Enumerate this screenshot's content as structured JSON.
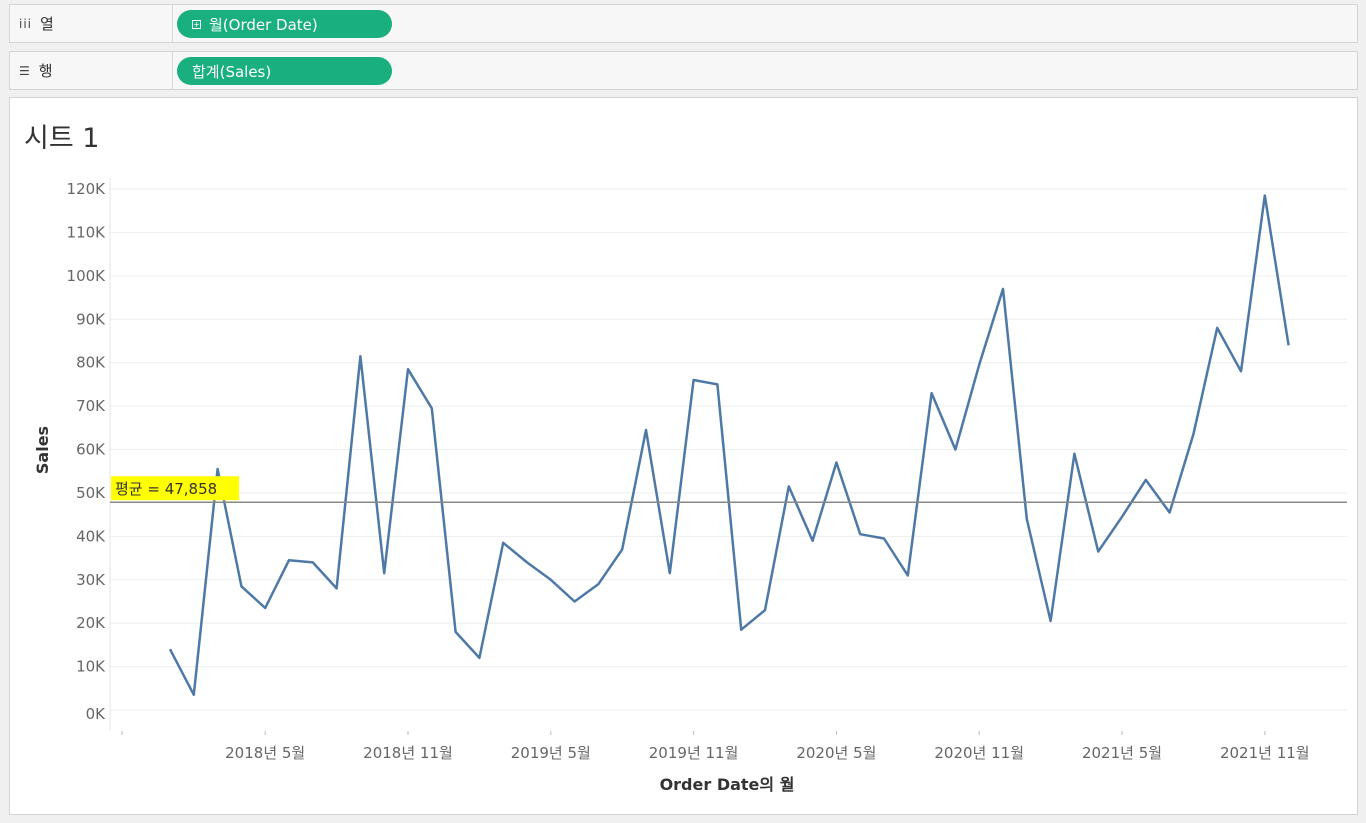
{
  "shelves": {
    "columns": {
      "icon": "columns-icon",
      "label": "열",
      "pill": "월(Order Date)"
    },
    "rows": {
      "icon": "rows-icon",
      "label": "행",
      "pill": "합계(Sales)"
    }
  },
  "sheet": {
    "title": "시트 1"
  },
  "colors": {
    "line": "#4e79a7",
    "pill": "#1aaf7e",
    "ref_line": "#888888",
    "ref_highlight": "#ffff00"
  },
  "chart_data": {
    "type": "line",
    "xlabel": "Order Date의 월",
    "ylabel": "Sales",
    "ylim": [
      0,
      120000
    ],
    "grid": true,
    "x_ticks": [
      "2018년 5월",
      "2018년 11월",
      "2019년 5월",
      "2019년 11월",
      "2020년 5월",
      "2020년 11월",
      "2021년 5월",
      "2021년 11월"
    ],
    "y_ticks": [
      "0K",
      "10K",
      "20K",
      "30K",
      "40K",
      "50K",
      "60K",
      "70K",
      "80K",
      "90K",
      "100K",
      "110K",
      "120K"
    ],
    "x": [
      "2018-01",
      "2018-02",
      "2018-03",
      "2018-04",
      "2018-05",
      "2018-06",
      "2018-07",
      "2018-08",
      "2018-09",
      "2018-10",
      "2018-11",
      "2018-12",
      "2019-01",
      "2019-02",
      "2019-03",
      "2019-04",
      "2019-05",
      "2019-06",
      "2019-07",
      "2019-08",
      "2019-09",
      "2019-10",
      "2019-11",
      "2019-12",
      "2020-01",
      "2020-02",
      "2020-03",
      "2020-04",
      "2020-05",
      "2020-06",
      "2020-07",
      "2020-08",
      "2020-09",
      "2020-10",
      "2020-11",
      "2020-12",
      "2021-01",
      "2021-02",
      "2021-03",
      "2021-04",
      "2021-05",
      "2021-06",
      "2021-07",
      "2021-08",
      "2021-09",
      "2021-10",
      "2021-11",
      "2021-12"
    ],
    "series": [
      {
        "values": [
          14000,
          3500,
          55500,
          28500,
          23500,
          34500,
          34000,
          28000,
          81500,
          31500,
          78500,
          69500,
          18000,
          12000,
          38500,
          34000,
          30000,
          25000,
          29000,
          37000,
          64500,
          31500,
          76000,
          75000,
          18500,
          23000,
          51500,
          39000,
          57000,
          40500,
          39500,
          31000,
          73000,
          60000,
          79500,
          97000,
          44000,
          20500,
          59000,
          36500,
          44500,
          53000,
          45500,
          63500,
          88000,
          78000,
          118500,
          84000
        ]
      }
    ],
    "reference_line": {
      "label": "평균 = 47,858",
      "value": 47858
    }
  }
}
